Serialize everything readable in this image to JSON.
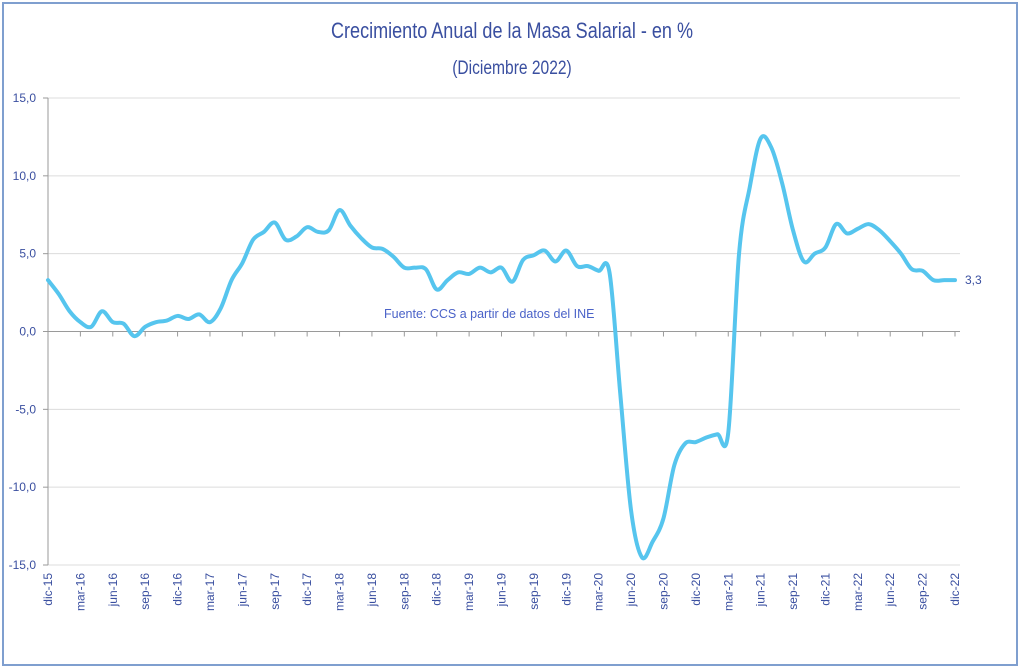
{
  "chart_data": {
    "type": "line",
    "title": "Crecimiento Anual de la Masa Salarial - en %",
    "subtitle": "(Diciembre 2022)",
    "source_note": "Fuente: CCS a partir de datos del INE",
    "ylim": [
      -15,
      15
    ],
    "yticks": [
      "15,0",
      "10,0",
      "5,0",
      "0,0",
      "-5,0",
      "-10,0",
      "-15,0"
    ],
    "ytick_values": [
      15,
      10,
      5,
      0,
      -5,
      -10,
      -15
    ],
    "xtick_labels": [
      "dic-15",
      "mar-16",
      "jun-16",
      "sep-16",
      "dic-16",
      "mar-17",
      "jun-17",
      "sep-17",
      "dic-17",
      "mar-18",
      "jun-18",
      "sep-18",
      "dic-18",
      "mar-19",
      "jun-19",
      "sep-19",
      "dic-19",
      "mar-20",
      "jun-20",
      "sep-20",
      "dic-20",
      "mar-21",
      "jun-21",
      "sep-21",
      "dic-21",
      "mar-22",
      "jun-22",
      "sep-22",
      "dic-22"
    ],
    "grid": true,
    "legend": "none",
    "last_value_label": "3,3",
    "series": [
      {
        "name": "Masa Salarial",
        "color": "#56c5ee",
        "values": [
          3.3,
          2.4,
          1.3,
          0.6,
          0.3,
          1.3,
          0.6,
          0.5,
          -0.3,
          0.3,
          0.6,
          0.7,
          1.0,
          0.8,
          1.1,
          0.6,
          1.5,
          3.3,
          4.4,
          5.9,
          6.4,
          7.0,
          5.9,
          6.1,
          6.7,
          6.4,
          6.5,
          7.8,
          6.8,
          6.0,
          5.4,
          5.3,
          4.8,
          4.1,
          4.1,
          4.0,
          2.7,
          3.3,
          3.8,
          3.7,
          4.1,
          3.8,
          4.1,
          3.2,
          4.6,
          4.9,
          5.2,
          4.5,
          5.2,
          4.2,
          4.2,
          3.9,
          3.8,
          -4.0,
          -11.5,
          -14.5,
          -13.5,
          -12.0,
          -8.6,
          -7.2,
          -7.1,
          -6.8,
          -6.6,
          -6.5,
          5.0,
          9.3,
          12.4,
          11.8,
          9.5,
          6.5,
          4.5,
          5.0,
          5.4,
          6.9,
          6.3,
          6.6,
          6.9,
          6.5,
          5.8,
          5.0,
          4.0,
          3.9,
          3.3,
          3.3,
          3.3
        ]
      }
    ]
  }
}
